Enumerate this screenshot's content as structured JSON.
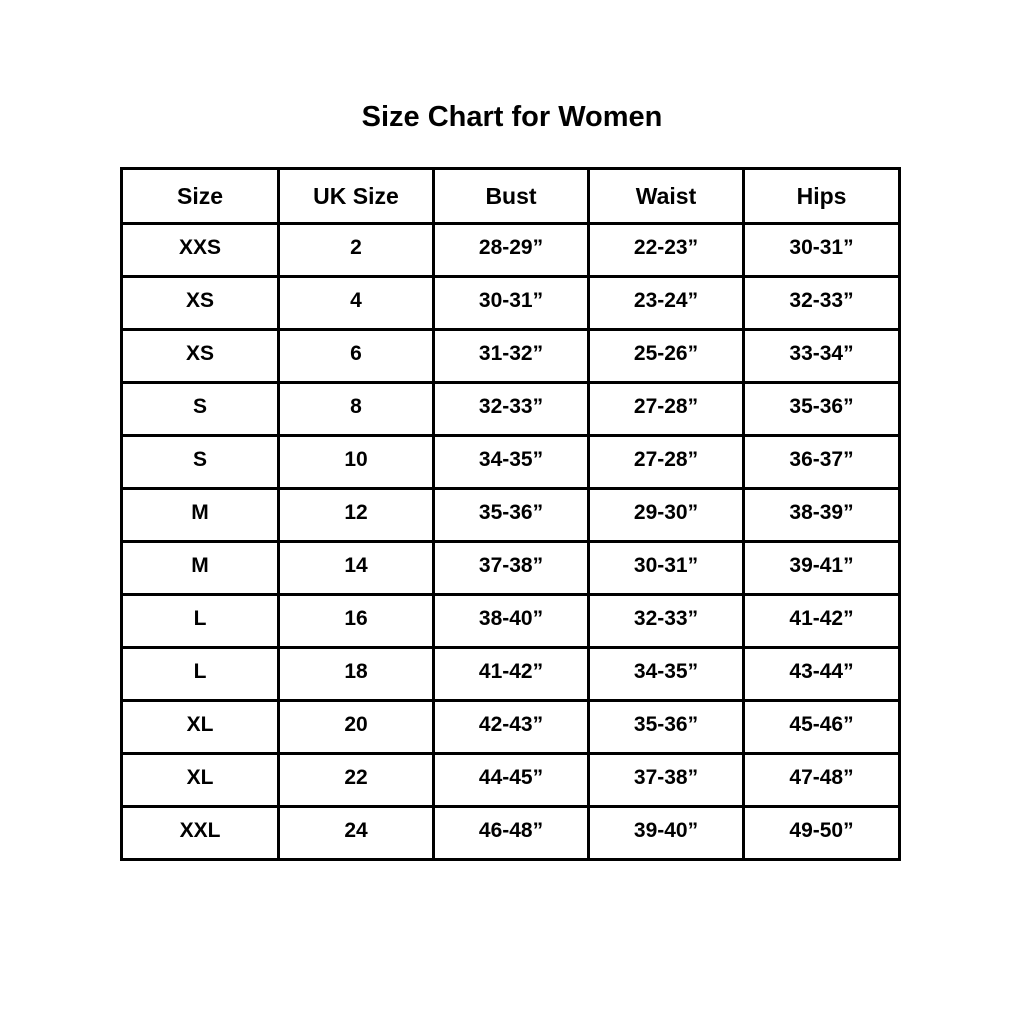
{
  "page": {
    "background_color": "#ffffff",
    "text_color": "#000000",
    "border_color": "#000000"
  },
  "chart_data": {
    "type": "table",
    "title": "Size Chart for Women",
    "columns": [
      "Size",
      "UK Size",
      "Bust",
      "Waist",
      "Hips"
    ],
    "rows": [
      [
        "XXS",
        "2",
        "28-29”",
        "22-23”",
        "30-31”"
      ],
      [
        "XS",
        "4",
        "30-31”",
        "23-24”",
        "32-33”"
      ],
      [
        "XS",
        "6",
        "31-32”",
        "25-26”",
        "33-34”"
      ],
      [
        "S",
        "8",
        "32-33”",
        "27-28”",
        "35-36”"
      ],
      [
        "S",
        "10",
        "34-35”",
        "27-28”",
        "36-37”"
      ],
      [
        "M",
        "12",
        "35-36”",
        "29-30”",
        "38-39”"
      ],
      [
        "M",
        "14",
        "37-38”",
        "30-31”",
        "39-41”"
      ],
      [
        "L",
        "16",
        "38-40”",
        "32-33”",
        "41-42”"
      ],
      [
        "L",
        "18",
        "41-42”",
        "34-35”",
        "43-44”"
      ],
      [
        "XL",
        "20",
        "42-43”",
        "35-36”",
        "45-46”"
      ],
      [
        "XL",
        "22",
        "44-45”",
        "37-38”",
        "47-48”"
      ],
      [
        "XXL",
        "24",
        "46-48”",
        "39-40”",
        "49-50”"
      ]
    ]
  }
}
